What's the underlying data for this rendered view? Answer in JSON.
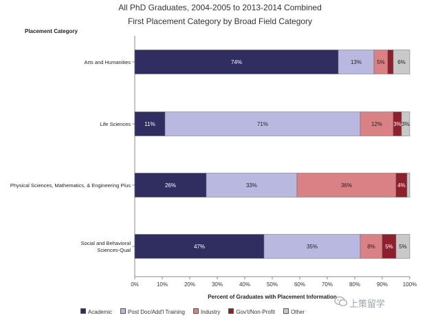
{
  "chart_data": {
    "type": "bar",
    "orientation": "horizontal",
    "stacked": true,
    "title": "All PhD Graduates, 2004-2005 to 2013-2014 Combined",
    "subtitle": "First Placement Category by Broad Field Category",
    "ylabel": "Placement Category",
    "xlabel": "Percent of Graduates with Placement Information",
    "xlim": [
      0,
      100
    ],
    "xticks": [
      "0%",
      "10%",
      "20%",
      "30%",
      "40%",
      "50%",
      "60%",
      "70%",
      "80%",
      "90%",
      "100%"
    ],
    "categories": [
      "Arts and Humanities",
      "Life Sciences",
      "Physical Sciences, Mathematics, & Engineering Plus",
      "Social and Behavioral Sciences-Qual"
    ],
    "series": [
      {
        "name": "Academic",
        "color": "#302e60",
        "values": [
          74,
          11,
          26,
          47
        ],
        "labels": [
          "74%",
          "11%",
          "26%",
          "47%"
        ]
      },
      {
        "name": "Post Doc/Add'l Training",
        "color": "#b9b8e0",
        "values": [
          13,
          71,
          33,
          35
        ],
        "labels": [
          "13%",
          "71%",
          "33%",
          "35%"
        ]
      },
      {
        "name": "Industry",
        "color": "#d98185",
        "values": [
          5,
          12,
          36,
          8
        ],
        "labels": [
          "5%",
          "12%",
          "36%",
          "8%"
        ]
      },
      {
        "name": "Gov't/Non-Profit",
        "color": "#8e1f2d",
        "values": [
          2,
          3,
          4,
          5
        ],
        "labels": [
          "",
          "3%",
          "4%",
          "5%"
        ]
      },
      {
        "name": "Other",
        "color": "#c9c9c9",
        "values": [
          6,
          3,
          1,
          5
        ],
        "labels": [
          "6%",
          "3%",
          "",
          "5%"
        ]
      }
    ],
    "grid": false,
    "legend": "bottom"
  },
  "watermark": "上策留学"
}
